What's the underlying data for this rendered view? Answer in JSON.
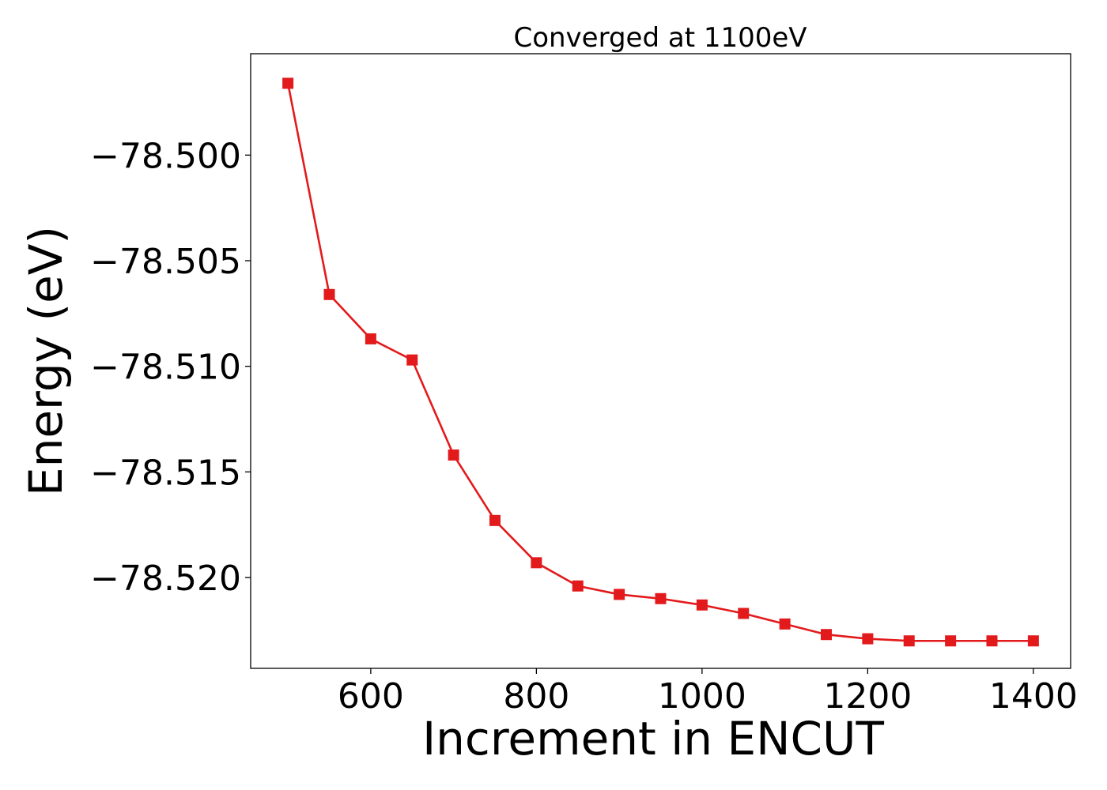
{
  "chart_data": {
    "type": "line",
    "title": "Converged at 1100eV",
    "xlabel": "Increment in ENCUT",
    "ylabel": "Energy (eV)",
    "xlim": [
      455,
      1445
    ],
    "ylim": [
      -78.5243,
      -78.4952
    ],
    "xticks": [
      600,
      800,
      1000,
      1200,
      1400
    ],
    "yticks": [
      -78.5,
      -78.505,
      -78.51,
      -78.515,
      -78.52
    ],
    "ytick_labels": [
      "−78.500",
      "−78.505",
      "−78.510",
      "−78.515",
      "−78.520"
    ],
    "grid": false,
    "legend": false,
    "series": [
      {
        "color": "#e31a1c",
        "marker": "square",
        "x": [
          500,
          550,
          600,
          650,
          700,
          750,
          800,
          850,
          900,
          950,
          1000,
          1050,
          1100,
          1150,
          1200,
          1250,
          1300,
          1350,
          1400
        ],
        "y": [
          -78.4966,
          -78.5066,
          -78.5087,
          -78.5097,
          -78.5142,
          -78.5173,
          -78.5193,
          -78.5204,
          -78.5208,
          -78.521,
          -78.5213,
          -78.5217,
          -78.5222,
          -78.5227,
          -78.5229,
          -78.523,
          -78.523,
          -78.523,
          -78.523
        ]
      }
    ]
  }
}
